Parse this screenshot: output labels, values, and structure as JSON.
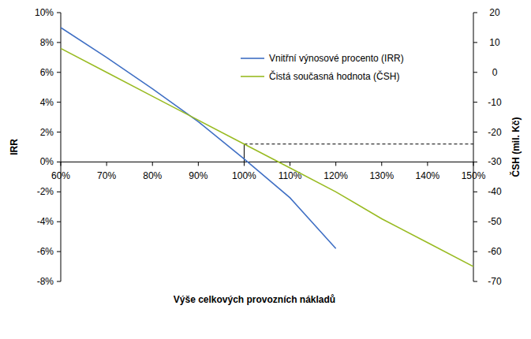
{
  "chart_data": {
    "type": "line",
    "x_label": "Výše celkových provozních nákladů",
    "y_label": "IRR",
    "y2_label": "ČSH (mil. Kč)",
    "x": [
      60,
      70,
      80,
      90,
      100,
      110,
      120,
      130,
      140,
      150
    ],
    "series": [
      {
        "name": "Vnitřní výnosové procento (IRR)",
        "color": "#3f6fc4",
        "values": [
          9,
          7,
          4.9,
          2.7,
          0.2,
          -2.4,
          -5.8,
          null,
          null,
          null
        ]
      },
      {
        "name": "Čistá současná hodnota (ČSH)",
        "color": "#99bb22",
        "axis": "y2",
        "values": [
          8,
          0,
          -8,
          -16,
          -24,
          -32,
          -40,
          -49,
          -57,
          -65
        ]
      }
    ],
    "xlim": [
      60,
      150
    ],
    "xticks": [
      {
        "value": 60,
        "label": "60%"
      },
      {
        "value": 70,
        "label": "70%"
      },
      {
        "value": 80,
        "label": "80%"
      },
      {
        "value": 90,
        "label": "90%"
      },
      {
        "value": 100,
        "label": "100%"
      },
      {
        "value": 110,
        "label": "110%"
      },
      {
        "value": 120,
        "label": "120%"
      },
      {
        "value": 130,
        "label": "130%"
      },
      {
        "value": 140,
        "label": "140%"
      },
      {
        "value": 150,
        "label": "150%"
      }
    ],
    "ylim": [
      -8,
      10
    ],
    "yticks": [
      {
        "value": -8,
        "label": "-8%"
      },
      {
        "value": -6,
        "label": "-6%"
      },
      {
        "value": -4,
        "label": "-4%"
      },
      {
        "value": -2,
        "label": "-2%"
      },
      {
        "value": 0,
        "label": "0%"
      },
      {
        "value": 2,
        "label": "2%"
      },
      {
        "value": 4,
        "label": "4%"
      },
      {
        "value": 6,
        "label": "6%"
      },
      {
        "value": 8,
        "label": "8%"
      },
      {
        "value": 10,
        "label": "10%"
      }
    ],
    "y2lim": [
      -70,
      20
    ],
    "y2ticks": [
      -70,
      -60,
      -50,
      -40,
      -30,
      -20,
      -10,
      0,
      10,
      20
    ],
    "reference_point": {
      "x": 100,
      "y": -24,
      "axis": "y2"
    },
    "legend": "top",
    "grid": false
  }
}
